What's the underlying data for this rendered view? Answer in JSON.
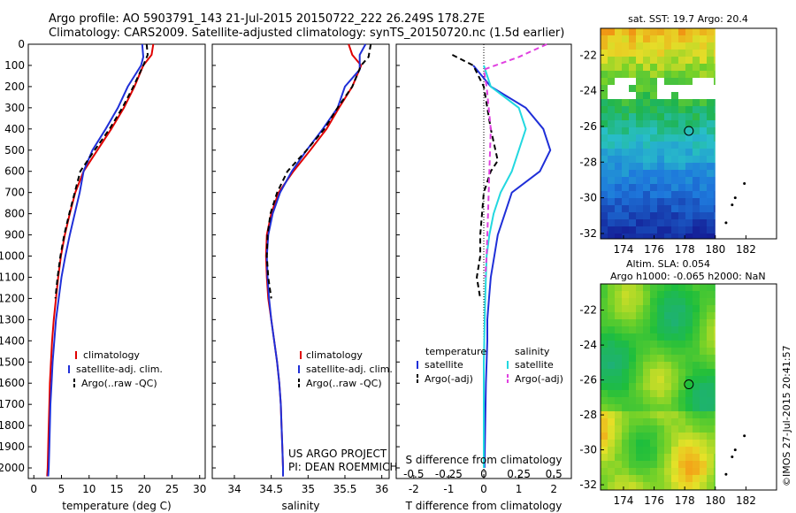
{
  "header": {
    "title_line1": "Argo profile: AO 5903791_143 21-Jul-2015 20150722_222 26.249S 178.27E",
    "title_line2": "Climatology: CARS2009. Satellite-adjusted climatology: synTS_20150720.nc (1.5d earlier)"
  },
  "project": {
    "line1": "US ARGO PROJECT",
    "line2": "PI: DEAN ROEMMICH"
  },
  "side_stamp": "©IMOS 27-Jul-2015 20:41:57",
  "colors": {
    "red": "#e00000",
    "blue": "#1f2fd8",
    "cyan": "#22d8e0",
    "magenta": "#e040e0",
    "black": "#000000"
  },
  "chart_data": [
    {
      "id": "temperature",
      "type": "line",
      "xlabel": "temperature (deg C)",
      "ylabel": "",
      "xlim": [
        -1,
        31
      ],
      "ylim": [
        2050,
        0
      ],
      "xticks": [
        0,
        5,
        10,
        15,
        20,
        25,
        30
      ],
      "yticks": [
        0,
        100,
        200,
        300,
        400,
        500,
        600,
        700,
        800,
        900,
        1000,
        1100,
        1200,
        1300,
        1400,
        1500,
        1600,
        1700,
        1800,
        1900,
        2000
      ],
      "legend": [
        "climatology",
        "satellite-adj. clim.",
        "Argo(..raw -QC)"
      ],
      "series": [
        {
          "name": "climatology",
          "color": "red",
          "dash": "solid",
          "points": [
            [
              21.6,
              0
            ],
            [
              21.3,
              50
            ],
            [
              19.8,
              100
            ],
            [
              18.2,
              200
            ],
            [
              16.3,
              300
            ],
            [
              14.0,
              400
            ],
            [
              11.5,
              500
            ],
            [
              9.0,
              600
            ],
            [
              7.5,
              700
            ],
            [
              6.5,
              800
            ],
            [
              5.6,
              900
            ],
            [
              4.9,
              1000
            ],
            [
              4.4,
              1100
            ],
            [
              4.0,
              1200
            ],
            [
              3.6,
              1300
            ],
            [
              3.3,
              1400
            ],
            [
              3.1,
              1500
            ],
            [
              2.9,
              1600
            ],
            [
              2.8,
              1700
            ],
            [
              2.7,
              1800
            ],
            [
              2.6,
              1900
            ],
            [
              2.5,
              2000
            ],
            [
              2.4,
              2040
            ]
          ]
        },
        {
          "name": "satellite-adj. clim.",
          "color": "blue",
          "dash": "solid",
          "points": [
            [
              19.6,
              0
            ],
            [
              19.8,
              60
            ],
            [
              19.4,
              100
            ],
            [
              17.0,
              200
            ],
            [
              15.2,
              300
            ],
            [
              13.0,
              400
            ],
            [
              10.6,
              500
            ],
            [
              9.0,
              600
            ],
            [
              8.3,
              700
            ],
            [
              7.4,
              800
            ],
            [
              6.5,
              900
            ],
            [
              5.7,
              1000
            ],
            [
              5.0,
              1100
            ],
            [
              4.5,
              1200
            ],
            [
              4.0,
              1300
            ],
            [
              3.7,
              1400
            ],
            [
              3.4,
              1500
            ],
            [
              3.2,
              1600
            ],
            [
              3.0,
              1700
            ],
            [
              2.9,
              1800
            ],
            [
              2.8,
              1900
            ],
            [
              2.7,
              2000
            ],
            [
              2.6,
              2040
            ]
          ]
        },
        {
          "name": "Argo(..raw -QC)",
          "color": "black",
          "dash": "dashed",
          "points": [
            [
              20.4,
              0
            ],
            [
              20.6,
              50
            ],
            [
              19.8,
              100
            ],
            [
              18.0,
              200
            ],
            [
              16.0,
              300
            ],
            [
              13.7,
              400
            ],
            [
              11.0,
              500
            ],
            [
              8.4,
              600
            ],
            [
              7.4,
              700
            ],
            [
              6.4,
              800
            ],
            [
              5.5,
              900
            ],
            [
              4.8,
              1000
            ],
            [
              4.3,
              1100
            ],
            [
              3.9,
              1200
            ]
          ]
        }
      ]
    },
    {
      "id": "salinity",
      "type": "line",
      "xlabel": "salinity",
      "ylabel": "",
      "xlim": [
        33.7,
        36.1
      ],
      "ylim": [
        2050,
        0
      ],
      "xticks": [
        34,
        34.5,
        35,
        35.5,
        36
      ],
      "legend": [
        "climatology",
        "satellite-adj. clim.",
        "Argo(..raw -QC)"
      ],
      "series": [
        {
          "name": "climatology",
          "color": "red",
          "dash": "solid",
          "points": [
            [
              35.55,
              0
            ],
            [
              35.6,
              50
            ],
            [
              35.72,
              100
            ],
            [
              35.6,
              200
            ],
            [
              35.42,
              300
            ],
            [
              35.25,
              400
            ],
            [
              35.03,
              500
            ],
            [
              34.8,
              600
            ],
            [
              34.6,
              700
            ],
            [
              34.5,
              800
            ],
            [
              34.44,
              900
            ],
            [
              34.43,
              1000
            ],
            [
              34.44,
              1100
            ],
            [
              34.46,
              1200
            ],
            [
              34.5,
              1300
            ],
            [
              34.54,
              1400
            ],
            [
              34.58,
              1500
            ],
            [
              34.61,
              1600
            ],
            [
              34.63,
              1700
            ],
            [
              34.64,
              1800
            ],
            [
              34.65,
              1900
            ],
            [
              34.66,
              2000
            ],
            [
              34.66,
              2040
            ]
          ]
        },
        {
          "name": "satellite-adj. clim.",
          "color": "blue",
          "dash": "solid",
          "points": [
            [
              35.78,
              0
            ],
            [
              35.7,
              50
            ],
            [
              35.7,
              120
            ],
            [
              35.5,
              200
            ],
            [
              35.4,
              300
            ],
            [
              35.2,
              400
            ],
            [
              34.98,
              500
            ],
            [
              34.78,
              600
            ],
            [
              34.62,
              700
            ],
            [
              34.52,
              800
            ],
            [
              34.46,
              900
            ],
            [
              34.44,
              1000
            ],
            [
              34.45,
              1100
            ],
            [
              34.47,
              1200
            ],
            [
              34.5,
              1300
            ],
            [
              34.54,
              1400
            ],
            [
              34.58,
              1500
            ],
            [
              34.61,
              1600
            ],
            [
              34.63,
              1700
            ],
            [
              34.64,
              1800
            ],
            [
              34.65,
              1900
            ],
            [
              34.66,
              2000
            ],
            [
              34.66,
              2040
            ]
          ]
        },
        {
          "name": "Argo(..raw -QC)",
          "color": "black",
          "dash": "dashed",
          "points": [
            [
              35.85,
              0
            ],
            [
              35.82,
              60
            ],
            [
              35.72,
              100
            ],
            [
              35.6,
              200
            ],
            [
              35.4,
              300
            ],
            [
              35.22,
              400
            ],
            [
              34.98,
              500
            ],
            [
              34.72,
              600
            ],
            [
              34.58,
              700
            ],
            [
              34.49,
              800
            ],
            [
              34.45,
              900
            ],
            [
              34.44,
              1000
            ],
            [
              34.46,
              1100
            ],
            [
              34.5,
              1200
            ]
          ]
        }
      ]
    },
    {
      "id": "difference",
      "type": "line",
      "xlabel": "T difference from climatology",
      "xlabel2": "S difference from climatology",
      "xlim": [
        -2.5,
        2.5
      ],
      "ylim": [
        2050,
        0
      ],
      "xticks": [
        -2,
        -1,
        0,
        1,
        2
      ],
      "xticks2": [
        -0.5,
        -0.25,
        0,
        0.25,
        0.5
      ],
      "legend_groups": {
        "left": "temperature",
        "right": "salinity"
      },
      "series": [
        {
          "name": "satellite",
          "group": "temperature",
          "color": "blue",
          "dash": "solid",
          "points": [
            [
              -0.3,
              100
            ],
            [
              0.2,
              200
            ],
            [
              1.2,
              300
            ],
            [
              1.7,
              400
            ],
            [
              1.9,
              500
            ],
            [
              1.6,
              600
            ],
            [
              0.8,
              700
            ],
            [
              0.6,
              800
            ],
            [
              0.4,
              900
            ],
            [
              0.3,
              1000
            ],
            [
              0.2,
              1100
            ],
            [
              0.15,
              1200
            ],
            [
              0.1,
              1300
            ],
            [
              0.1,
              1400
            ],
            [
              0.08,
              1500
            ],
            [
              0.06,
              1600
            ],
            [
              0.05,
              1700
            ],
            [
              0.04,
              1800
            ],
            [
              0.03,
              1900
            ],
            [
              0.02,
              2000
            ]
          ]
        },
        {
          "name": "Argo(-adj)",
          "group": "temperature",
          "color": "black",
          "dash": "dashed",
          "points": [
            [
              -0.9,
              50
            ],
            [
              -0.3,
              100
            ],
            [
              0.0,
              200
            ],
            [
              0.2,
              400
            ],
            [
              0.4,
              550
            ],
            [
              0.2,
              600
            ],
            [
              0.0,
              700
            ],
            [
              -0.1,
              900
            ],
            [
              -0.1,
              1000
            ],
            [
              -0.2,
              1100
            ],
            [
              -0.1,
              1200
            ]
          ]
        },
        {
          "name": "satellite",
          "group": "salinity",
          "color": "cyan",
          "dash": "solid",
          "points": [
            [
              0.0,
              100
            ],
            [
              0.05,
              200
            ],
            [
              0.25,
              300
            ],
            [
              0.3,
              400
            ],
            [
              0.25,
              500
            ],
            [
              0.2,
              600
            ],
            [
              0.12,
              700
            ],
            [
              0.07,
              800
            ],
            [
              0.04,
              900
            ],
            [
              0.02,
              1000
            ],
            [
              0.01,
              1200
            ],
            [
              0.0,
              1500
            ],
            [
              0.0,
              2000
            ]
          ]
        },
        {
          "name": "Argo(-adj)",
          "group": "salinity",
          "color": "magenta",
          "dash": "dashed",
          "points": [
            [
              0.45,
              0
            ],
            [
              0.25,
              60
            ],
            [
              0.0,
              120
            ],
            [
              0.02,
              200
            ],
            [
              0.05,
              400
            ],
            [
              0.04,
              600
            ],
            [
              0.03,
              800
            ],
            [
              0.02,
              1000
            ],
            [
              0.01,
              1100
            ]
          ]
        }
      ]
    },
    {
      "id": "sst_map",
      "type": "heatmap",
      "title": "sat. SST: 19.7 Argo: 20.4",
      "xlim": [
        172.5,
        184
      ],
      "ylim": [
        -32.3,
        -20.5
      ],
      "xticks": [
        174,
        176,
        178,
        180,
        182
      ],
      "yticks": [
        -22,
        -24,
        -26,
        -28,
        -30,
        -32
      ],
      "marker": [
        178.27,
        -26.249
      ]
    },
    {
      "id": "sla_map",
      "type": "heatmap",
      "title": "Altim. SLA: 0.054",
      "title2": "Argo h1000: -0.065 h2000: NaN",
      "xlim": [
        172.5,
        184
      ],
      "ylim": [
        -32.3,
        -20.5
      ],
      "xticks": [
        174,
        176,
        178,
        180,
        182
      ],
      "yticks": [
        -22,
        -24,
        -26,
        -28,
        -30,
        -32
      ],
      "marker": [
        178.27,
        -26.249
      ]
    }
  ]
}
